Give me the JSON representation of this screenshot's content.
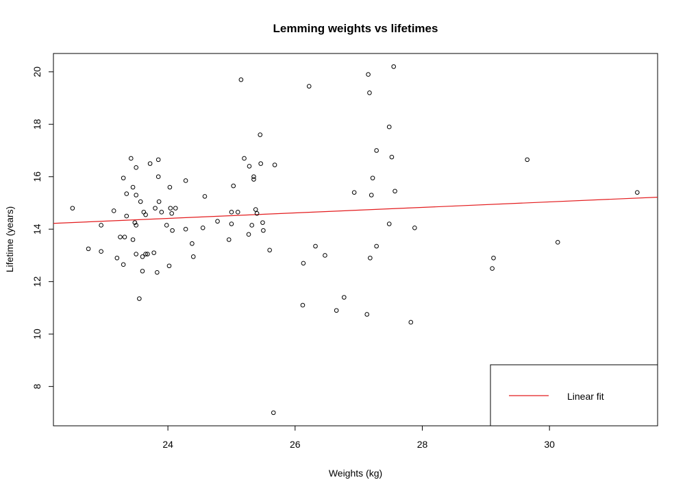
{
  "chart_data": {
    "type": "scatter",
    "title": "Lemming weights vs lifetimes",
    "xlabel": "Weights (kg)",
    "ylabel": "Lifetime (years)",
    "xlim": [
      22.2,
      31.7
    ],
    "ylim": [
      6.5,
      20.7
    ],
    "xticks": [
      24,
      26,
      28,
      30
    ],
    "yticks": [
      8,
      10,
      12,
      14,
      16,
      18,
      20
    ],
    "grid": false,
    "legend": {
      "position": "bottom-right",
      "entries": [
        "Linear fit"
      ]
    },
    "fit_line": {
      "label": "Linear fit",
      "color": "#e31a1c",
      "slope": 0.105,
      "intercept": 11.89
    },
    "point_color": "#000000",
    "points": [
      [
        22.5,
        14.8
      ],
      [
        22.75,
        13.25
      ],
      [
        22.95,
        14.15
      ],
      [
        22.95,
        13.15
      ],
      [
        23.15,
        14.7
      ],
      [
        23.2,
        12.9
      ],
      [
        23.25,
        13.7
      ],
      [
        23.3,
        15.95
      ],
      [
        23.3,
        12.65
      ],
      [
        23.32,
        13.7
      ],
      [
        23.35,
        15.35
      ],
      [
        23.35,
        14.5
      ],
      [
        23.42,
        16.7
      ],
      [
        23.45,
        15.6
      ],
      [
        23.45,
        13.6
      ],
      [
        23.48,
        14.25
      ],
      [
        23.5,
        15.3
      ],
      [
        23.5,
        14.15
      ],
      [
        23.5,
        16.35
      ],
      [
        23.5,
        13.05
      ],
      [
        23.55,
        11.35
      ],
      [
        23.57,
        15.05
      ],
      [
        23.6,
        12.95
      ],
      [
        23.6,
        12.4
      ],
      [
        23.62,
        14.65
      ],
      [
        23.65,
        14.55
      ],
      [
        23.65,
        13.05
      ],
      [
        23.68,
        13.05
      ],
      [
        23.72,
        16.5
      ],
      [
        23.78,
        13.1
      ],
      [
        23.8,
        14.8
      ],
      [
        23.83,
        12.35
      ],
      [
        23.85,
        16.65
      ],
      [
        23.85,
        16.0
      ],
      [
        23.86,
        15.05
      ],
      [
        23.9,
        14.65
      ],
      [
        23.98,
        14.15
      ],
      [
        24.02,
        12.6
      ],
      [
        24.03,
        15.6
      ],
      [
        24.04,
        14.8
      ],
      [
        24.06,
        14.6
      ],
      [
        24.07,
        13.95
      ],
      [
        24.12,
        14.8
      ],
      [
        24.28,
        15.85
      ],
      [
        24.28,
        14.0
      ],
      [
        24.38,
        13.45
      ],
      [
        24.4,
        12.95
      ],
      [
        24.55,
        14.05
      ],
      [
        24.58,
        15.25
      ],
      [
        24.78,
        14.3
      ],
      [
        24.96,
        13.6
      ],
      [
        25.0,
        14.65
      ],
      [
        25.0,
        14.2
      ],
      [
        25.03,
        15.65
      ],
      [
        25.1,
        14.65
      ],
      [
        25.15,
        19.7
      ],
      [
        25.2,
        16.7
      ],
      [
        25.27,
        13.8
      ],
      [
        25.28,
        16.4
      ],
      [
        25.32,
        14.15
      ],
      [
        25.35,
        16.0
      ],
      [
        25.35,
        15.9
      ],
      [
        25.38,
        14.75
      ],
      [
        25.4,
        14.6
      ],
      [
        25.45,
        17.6
      ],
      [
        25.46,
        16.5
      ],
      [
        25.49,
        14.25
      ],
      [
        25.5,
        13.95
      ],
      [
        25.6,
        13.2
      ],
      [
        25.66,
        7.0
      ],
      [
        25.68,
        16.45
      ],
      [
        26.12,
        11.1
      ],
      [
        26.13,
        12.7
      ],
      [
        26.22,
        19.45
      ],
      [
        26.32,
        13.35
      ],
      [
        26.47,
        13.0
      ],
      [
        26.65,
        10.9
      ],
      [
        26.77,
        11.4
      ],
      [
        26.93,
        15.4
      ],
      [
        27.13,
        10.75
      ],
      [
        27.15,
        19.9
      ],
      [
        27.17,
        19.2
      ],
      [
        27.18,
        12.9
      ],
      [
        27.2,
        15.3
      ],
      [
        27.22,
        15.95
      ],
      [
        27.28,
        17.0
      ],
      [
        27.28,
        13.35
      ],
      [
        27.48,
        17.9
      ],
      [
        27.48,
        14.2
      ],
      [
        27.52,
        16.75
      ],
      [
        27.55,
        20.2
      ],
      [
        27.57,
        15.45
      ],
      [
        27.82,
        10.45
      ],
      [
        27.88,
        14.05
      ],
      [
        29.1,
        12.5
      ],
      [
        29.12,
        12.9
      ],
      [
        29.65,
        16.65
      ],
      [
        30.13,
        13.5
      ],
      [
        31.38,
        15.4
      ]
    ]
  }
}
